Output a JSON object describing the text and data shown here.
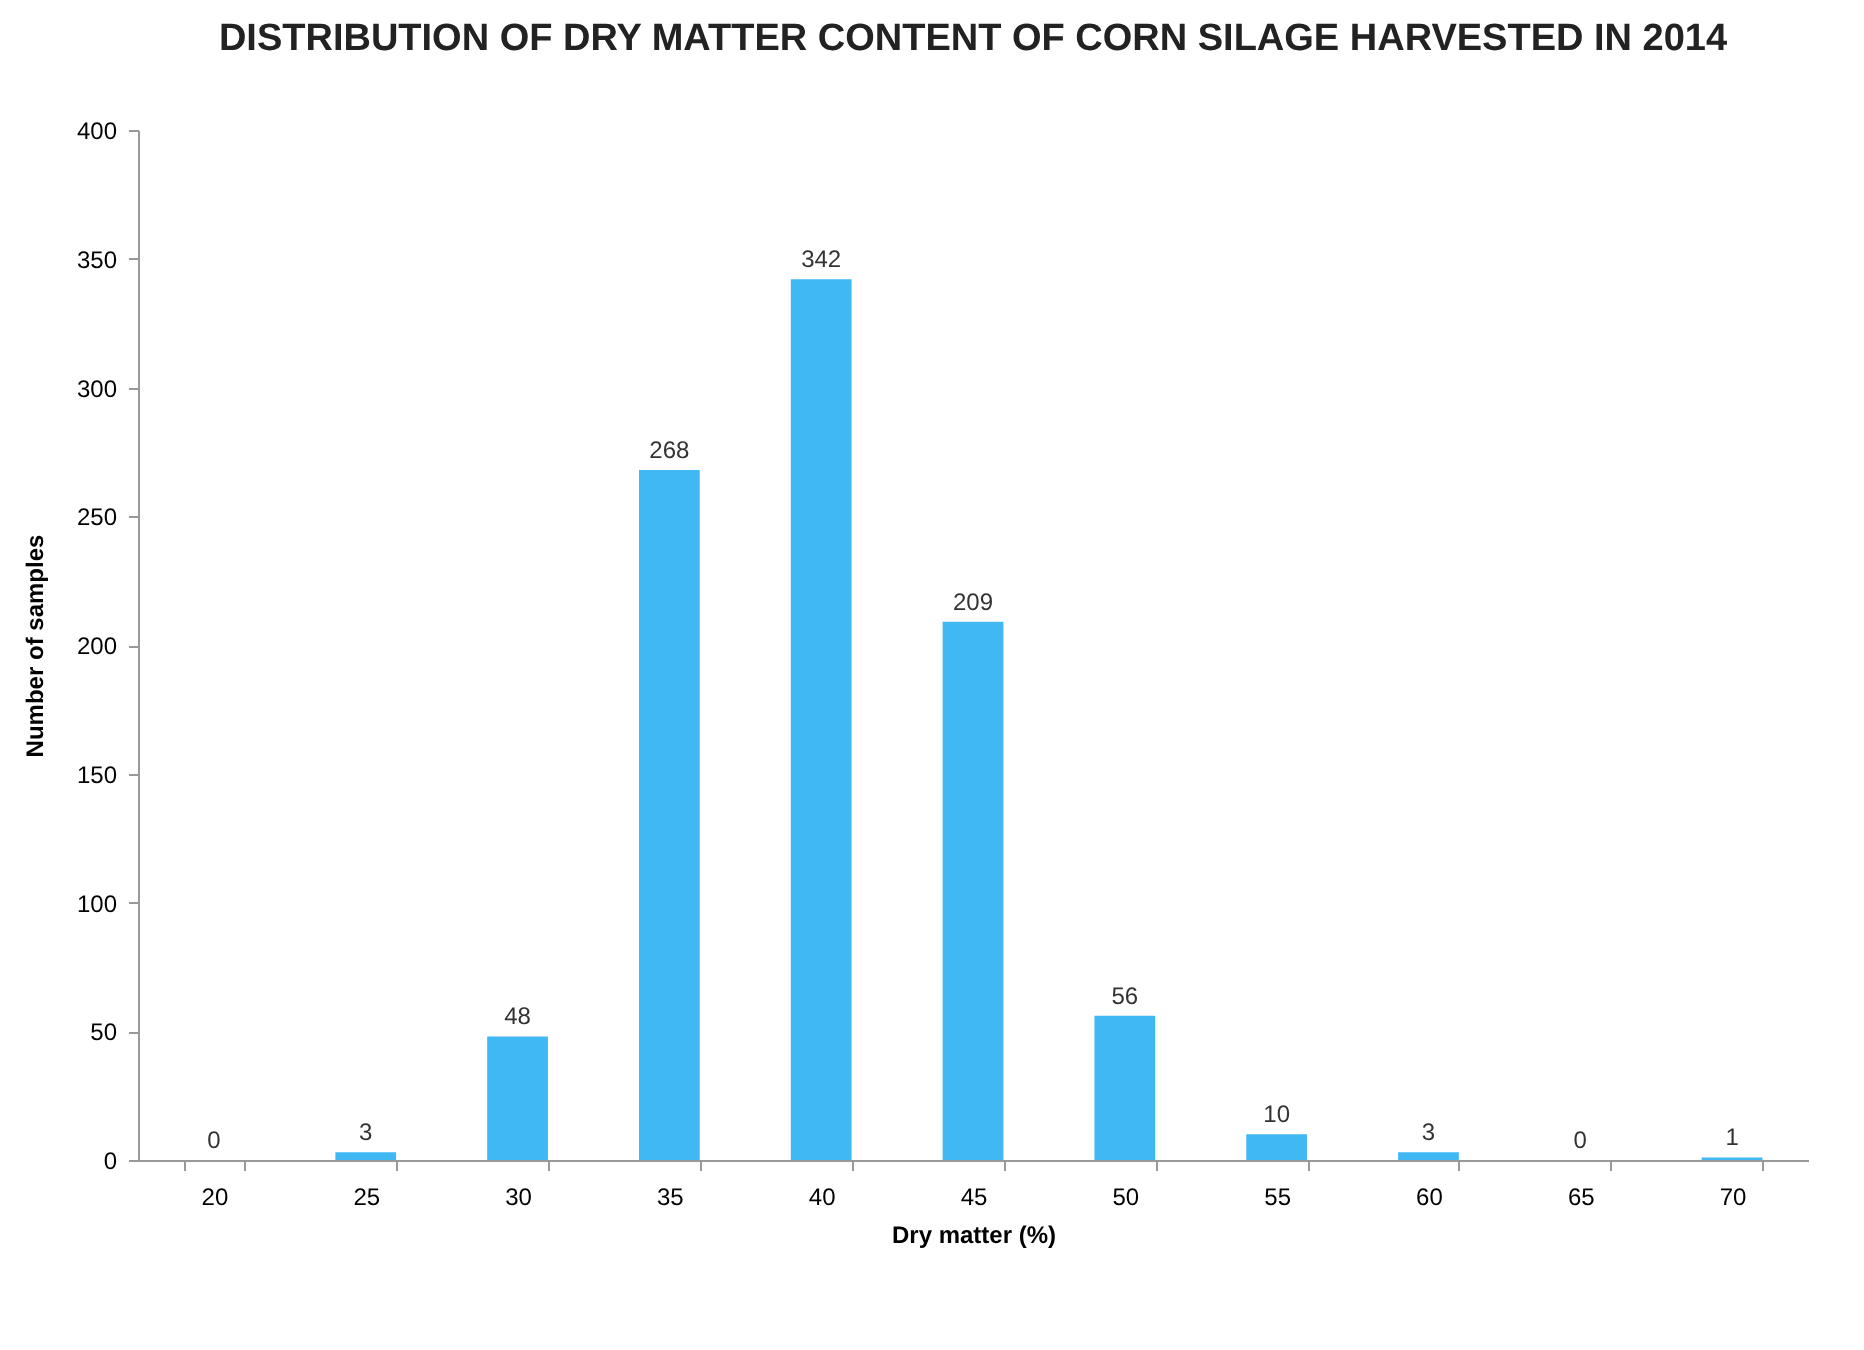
{
  "chart_data": {
    "type": "bar",
    "title": "DISTRIBUTION OF DRY MATTER CONTENT OF CORN SILAGE HARVESTED IN 2014",
    "xlabel": "Dry matter (%)",
    "ylabel": "Number of samples",
    "categories": [
      "20",
      "25",
      "30",
      "35",
      "40",
      "45",
      "50",
      "55",
      "60",
      "65",
      "70"
    ],
    "values": [
      0,
      3,
      48,
      268,
      342,
      209,
      56,
      10,
      3,
      0,
      1
    ],
    "color": "#40b8f4",
    "ylim": [
      0,
      400
    ],
    "yticks": [
      0,
      50,
      100,
      150,
      200,
      250,
      300,
      350,
      400
    ],
    "data_labels": true
  }
}
